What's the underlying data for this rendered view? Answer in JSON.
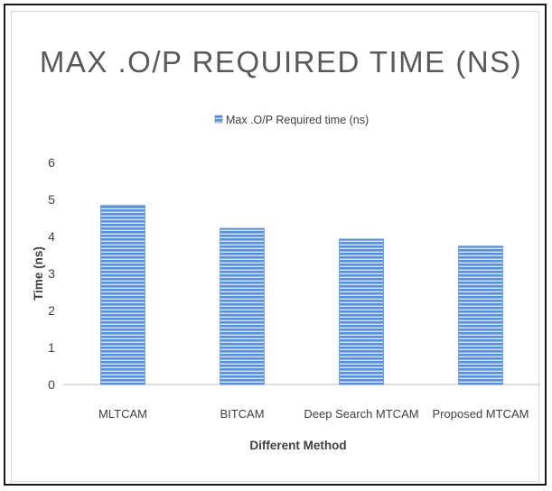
{
  "chart_data": {
    "type": "bar",
    "title": "MAX .O/P REQUIRED TIME (NS)",
    "xlabel": "Different Method",
    "ylabel": "Time (ns)",
    "categories": [
      "MLTCAM",
      "BITCAM",
      "Deep Search MTCAM",
      "Proposed MTCAM"
    ],
    "series": [
      {
        "name": "Max .O/P Required time (ns)",
        "values": [
          4.85,
          4.22,
          3.93,
          3.74
        ]
      }
    ],
    "ylim": [
      0,
      6
    ],
    "yticks": [
      "0",
      "1",
      "2",
      "3",
      "4",
      "5",
      "6"
    ],
    "legend_position": "top",
    "grid": false,
    "bar_color": "#5b8fd4",
    "bar_stripe_color": "#ffffff"
  }
}
